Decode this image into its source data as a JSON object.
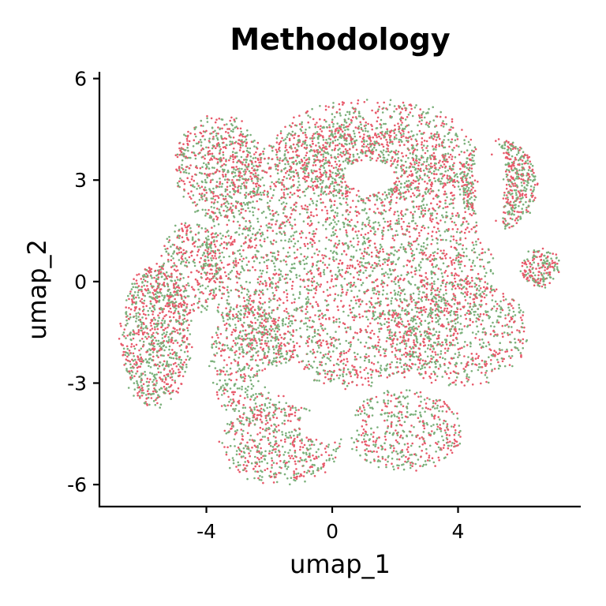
{
  "chart_data": {
    "type": "scatter",
    "title": "Methodology",
    "xlabel": "umap_1",
    "ylabel": "umap_2",
    "xlim": [
      -7.4,
      7.9
    ],
    "ylim": [
      -6.65,
      6.2
    ],
    "xticks": [
      -4,
      0,
      4
    ],
    "xtick_labels": [
      "-4",
      "0",
      "4"
    ],
    "yticks": [
      -6,
      -3,
      0,
      3,
      6
    ],
    "ytick_labels": [
      "-6",
      "-3",
      "0",
      "3",
      "6"
    ],
    "grid": false,
    "legend": "none",
    "series": [
      {
        "color": "#7BB07B"
      },
      {
        "color": "#E8596A"
      }
    ],
    "regions": [
      {
        "description_points": [
          [
            0.5,
            2.0
          ],
          [
            -2.0,
            0.5
          ],
          [
            -1.5,
            -1.0
          ],
          [
            2.0,
            -1.0
          ],
          [
            1.5,
            3.5
          ],
          [
            -3.5,
            2.5
          ],
          [
            3.5,
            1.0
          ],
          [
            1.0,
            4.8
          ]
        ]
      },
      {
        "description_points": [
          [
            -6.3,
            -1.2
          ],
          [
            -5.5,
            0.2
          ],
          [
            -5.0,
            -2.5
          ],
          [
            6.4,
            0.4
          ],
          [
            -1.5,
            -5.5
          ],
          [
            2.2,
            -5.0
          ],
          [
            5.4,
            3.4
          ],
          [
            -3.8,
            4.1
          ]
        ]
      }
    ]
  }
}
